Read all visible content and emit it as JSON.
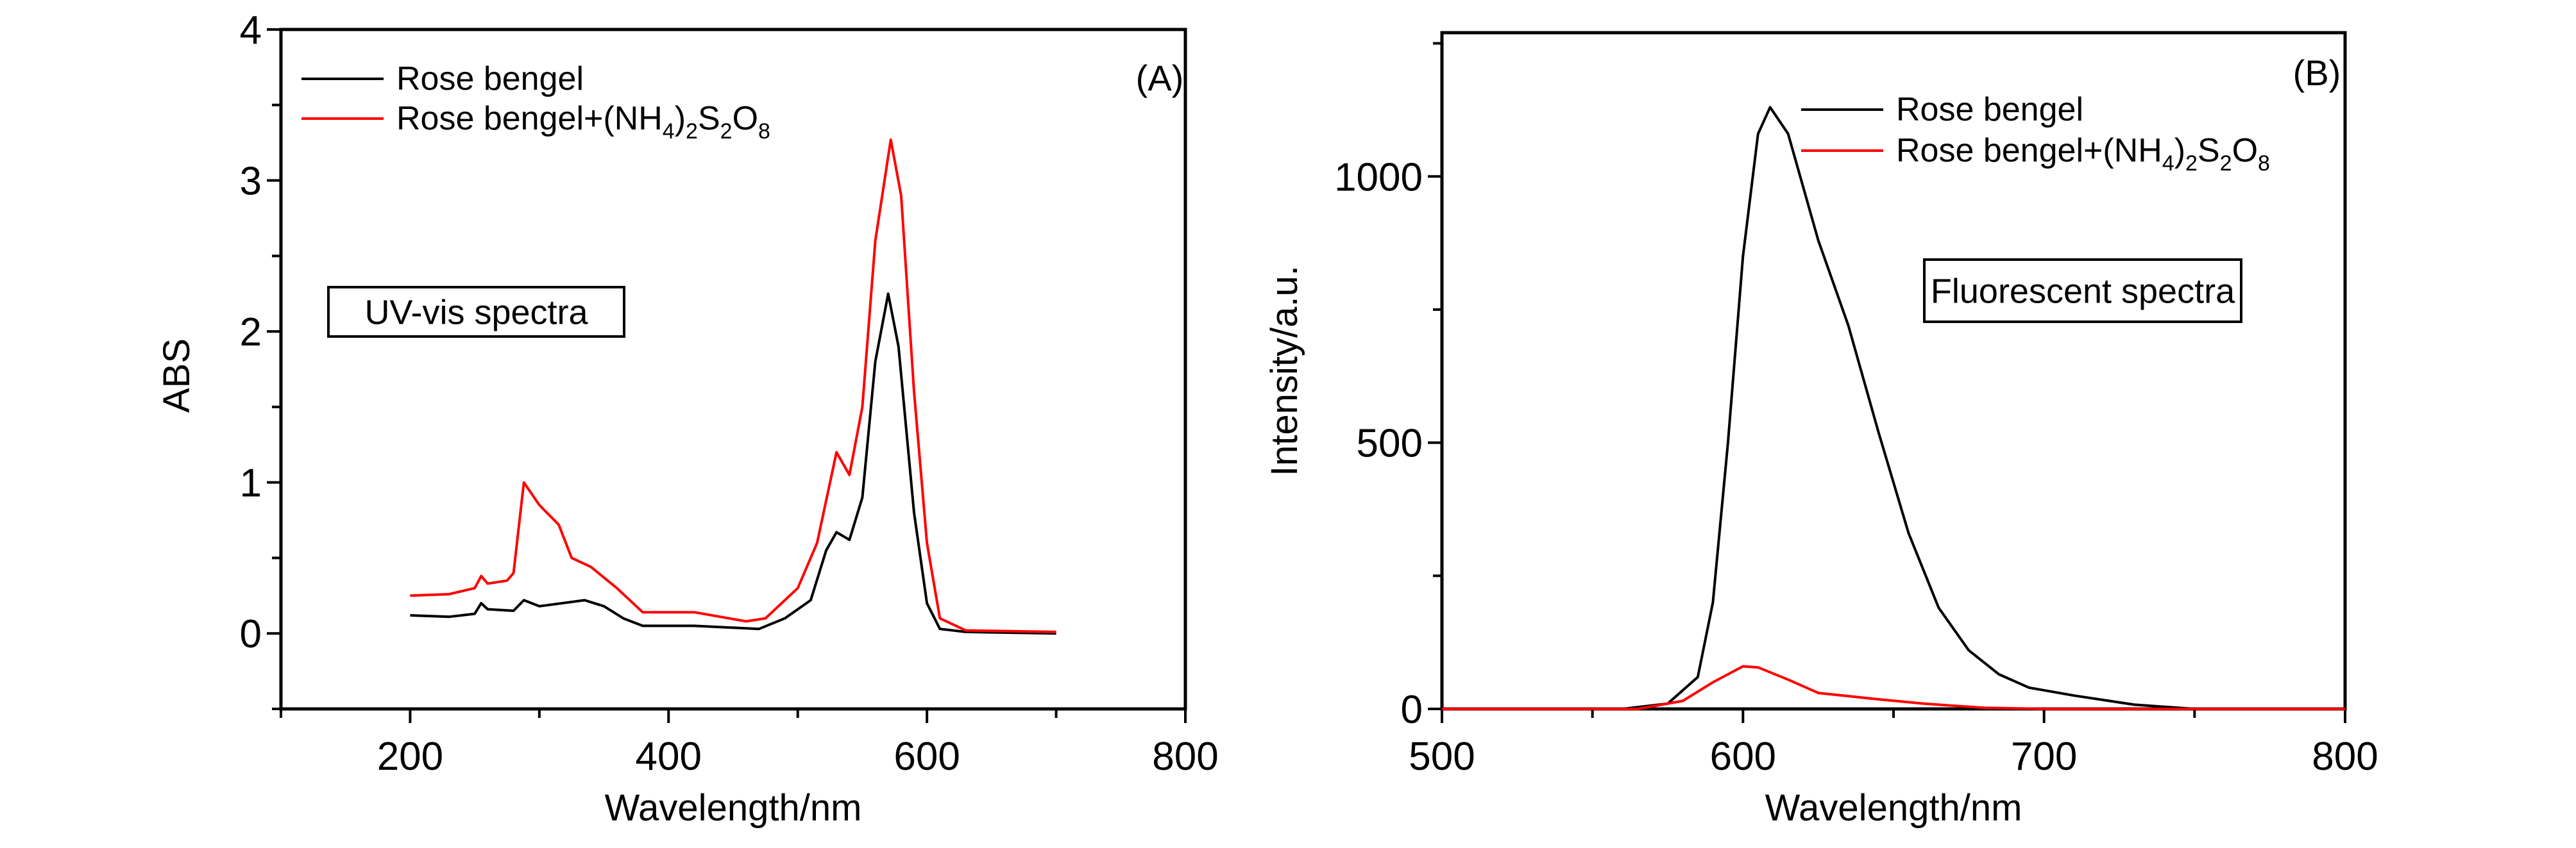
{
  "chart_data": [
    {
      "type": "line",
      "panel_label": "(A)",
      "annotation": "UV-vis spectra",
      "xlabel": "Wavelength/nm",
      "ylabel": "ABS",
      "xlim": [
        100,
        800
      ],
      "ylim": [
        -0.5,
        4
      ],
      "xticks": [
        200,
        400,
        600,
        800
      ],
      "yticks": [
        0,
        1,
        2,
        3,
        4
      ],
      "legend_placement": "top-left",
      "series": [
        {
          "name": "Rose bengel",
          "name_main": "Rose bengel",
          "color": "#000000",
          "x": [
            200,
            230,
            250,
            255,
            260,
            280,
            288,
            300,
            335,
            350,
            365,
            380,
            420,
            470,
            490,
            510,
            522,
            530,
            540,
            550,
            560,
            570,
            578,
            590,
            600,
            610,
            630,
            700
          ],
          "y": [
            0.12,
            0.11,
            0.13,
            0.2,
            0.16,
            0.15,
            0.22,
            0.18,
            0.22,
            0.18,
            0.1,
            0.05,
            0.05,
            0.03,
            0.1,
            0.22,
            0.55,
            0.67,
            0.62,
            0.9,
            1.8,
            2.25,
            1.9,
            0.8,
            0.2,
            0.03,
            0.01,
            0.0
          ]
        },
        {
          "name": "Rose bengel+(NH4)2S2O8",
          "name_main": "Rose bengel+(NH",
          "sub1": "4",
          "mid1": ")",
          "sub2": "2",
          "mid2": "S",
          "sub3": "2",
          "mid3": "O",
          "sub4": "8",
          "color": "#ff0000",
          "x": [
            200,
            230,
            250,
            255,
            260,
            275,
            280,
            288,
            300,
            315,
            325,
            340,
            360,
            380,
            400,
            420,
            460,
            475,
            500,
            515,
            530,
            540,
            550,
            560,
            572,
            580,
            590,
            600,
            610,
            630,
            700
          ],
          "y": [
            0.25,
            0.26,
            0.3,
            0.38,
            0.33,
            0.35,
            0.4,
            1.0,
            0.85,
            0.72,
            0.5,
            0.44,
            0.3,
            0.14,
            0.14,
            0.14,
            0.08,
            0.1,
            0.3,
            0.6,
            1.2,
            1.05,
            1.5,
            2.6,
            3.27,
            2.9,
            1.6,
            0.6,
            0.1,
            0.02,
            0.01
          ]
        }
      ]
    },
    {
      "type": "line",
      "panel_label": "(B)",
      "annotation": "Fluorescent spectra",
      "xlabel": "Wavelength/nm",
      "ylabel": "Intensity/a.u.",
      "xlim": [
        500,
        800
      ],
      "ylim": [
        0,
        1270
      ],
      "xticks": [
        500,
        600,
        700,
        800
      ],
      "yticks": [
        0,
        500,
        1000
      ],
      "legend_placement": "top-right",
      "series": [
        {
          "name": "Rose bengel",
          "name_main": "Rose bengel",
          "color": "#000000",
          "x": [
            500,
            560,
            575,
            585,
            590,
            595,
            600,
            605,
            609,
            615,
            625,
            635,
            645,
            655,
            665,
            675,
            685,
            695,
            710,
            730,
            750,
            800
          ],
          "y": [
            0,
            0,
            10,
            60,
            200,
            500,
            850,
            1080,
            1130,
            1080,
            880,
            720,
            520,
            330,
            190,
            110,
            65,
            40,
            25,
            8,
            0,
            0
          ]
        },
        {
          "name": "Rose bengel+(NH4)2S2O8",
          "name_main": "Rose bengel+(NH",
          "sub1": "4",
          "mid1": ")",
          "sub2": "2",
          "mid2": "S",
          "sub3": "2",
          "mid3": "O",
          "sub4": "8",
          "color": "#ff0000",
          "x": [
            500,
            565,
            580,
            590,
            600,
            605,
            615,
            625,
            645,
            660,
            680,
            700,
            800
          ],
          "y": [
            0,
            0,
            15,
            50,
            80,
            78,
            55,
            30,
            18,
            10,
            2,
            0,
            0
          ]
        }
      ]
    }
  ]
}
